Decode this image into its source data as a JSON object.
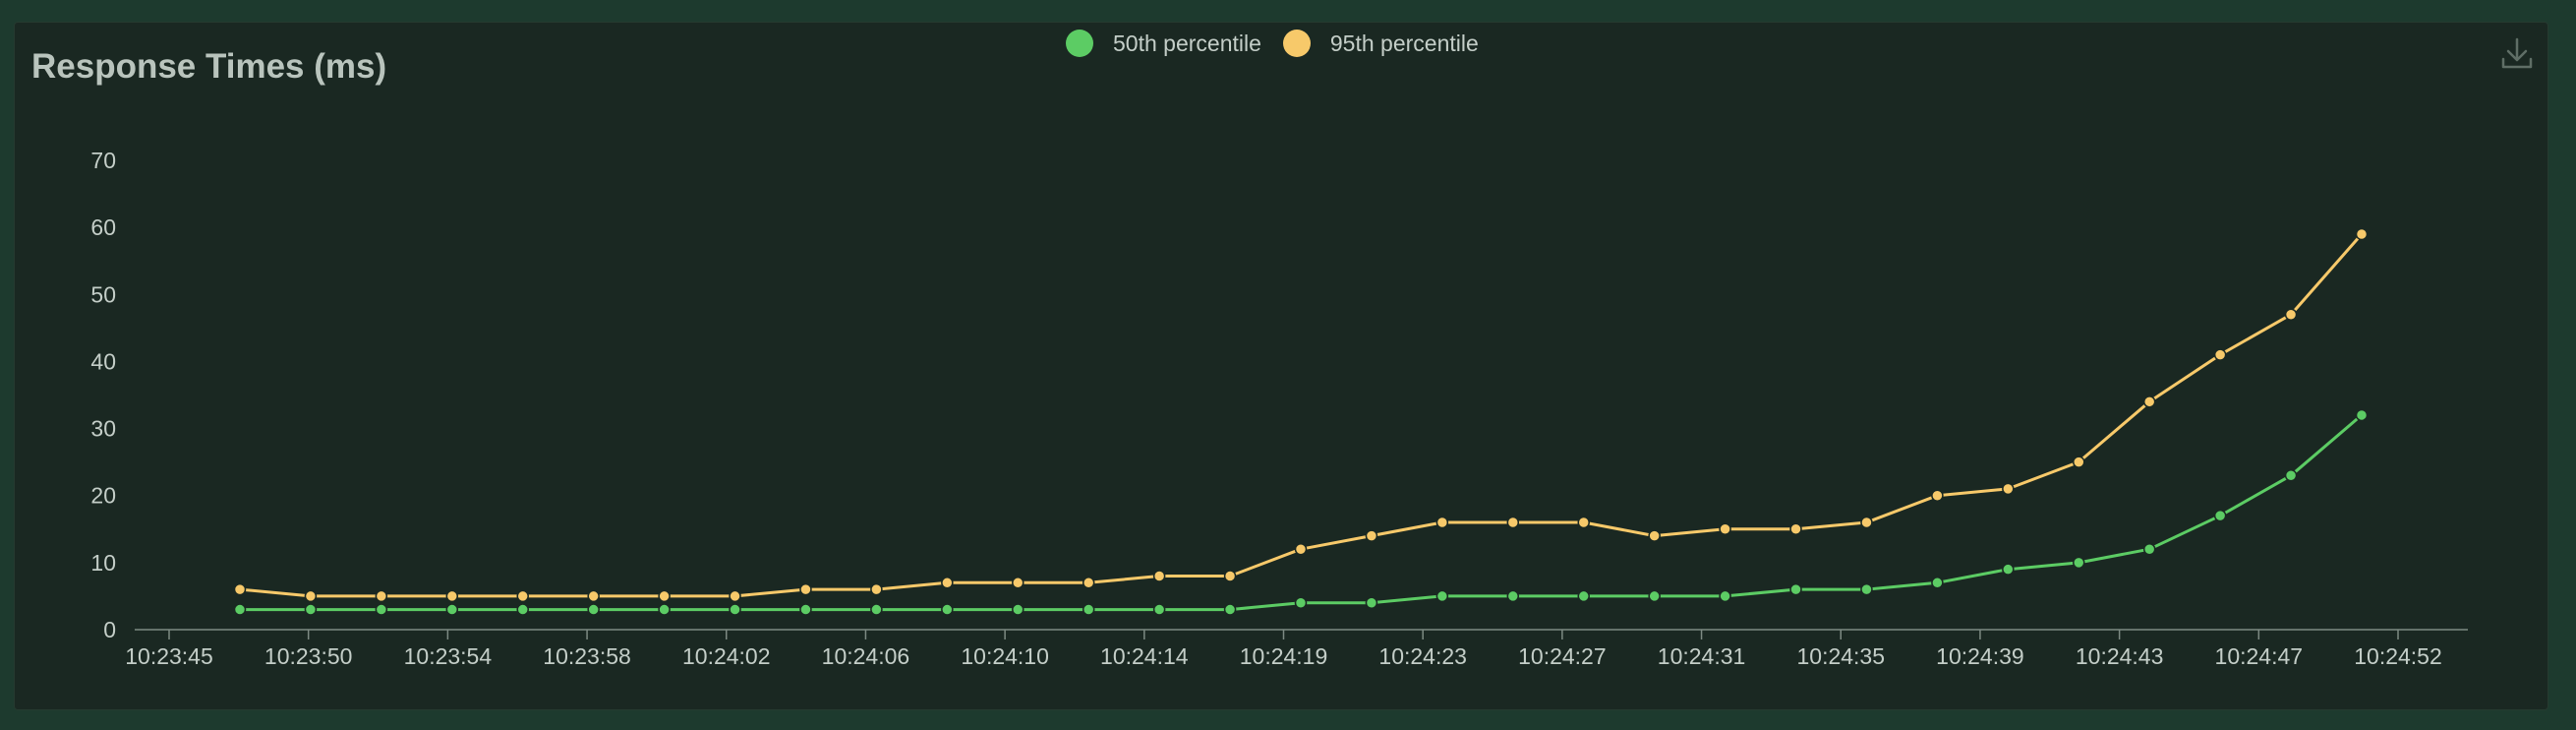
{
  "colors": {
    "background": "#1d3a2e",
    "panel": "#1a2822",
    "axis": "#7d8a83",
    "text": "#c4cec8",
    "title": "#b9c4bd"
  },
  "chart_data": {
    "type": "line",
    "title": "Response Times (ms)",
    "xlabel": "",
    "ylabel": "",
    "ylim": [
      0,
      75
    ],
    "yticks": [
      0,
      10,
      20,
      30,
      40,
      50,
      60,
      70
    ],
    "xtick_labels": [
      "10:23:45",
      "10:23:50",
      "10:23:54",
      "10:23:58",
      "10:24:02",
      "10:24:06",
      "10:24:10",
      "10:24:14",
      "10:24:19",
      "10:24:23",
      "10:24:27",
      "10:24:31",
      "10:24:35",
      "10:24:39",
      "10:24:43",
      "10:24:47",
      "10:24:52"
    ],
    "grid": false,
    "legend": "top-center",
    "series": [
      {
        "name": "50th percentile",
        "color": "#5ccc64",
        "values": [
          3,
          3,
          3,
          3,
          3,
          3,
          3,
          3,
          3,
          3,
          3,
          3,
          3,
          3,
          3,
          4,
          4,
          5,
          5,
          5,
          5,
          5,
          6,
          6,
          7,
          9,
          10,
          12,
          17,
          23,
          32
        ]
      },
      {
        "name": "95th percentile",
        "color": "#f7c96a",
        "values": [
          6,
          5,
          5,
          5,
          5,
          5,
          5,
          5,
          6,
          6,
          7,
          7,
          7,
          8,
          8,
          12,
          14,
          16,
          16,
          16,
          14,
          15,
          15,
          16,
          20,
          21,
          25,
          34,
          41,
          47,
          59
        ]
      }
    ]
  },
  "toolbar": {
    "download_icon": "download-icon"
  }
}
